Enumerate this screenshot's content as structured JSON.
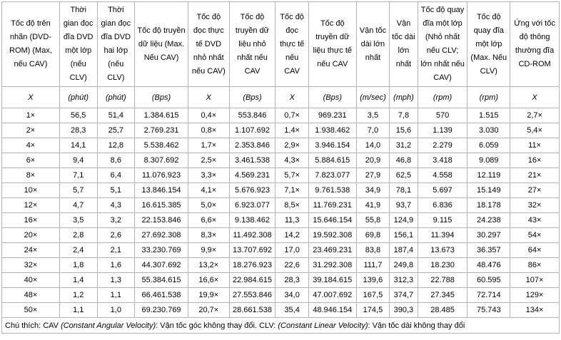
{
  "table": {
    "columns": [
      {
        "header": "Tốc độ trên nhãn (DVD-ROM) (Max, nếu CAV)",
        "unit": "X"
      },
      {
        "header": "Thời gian đọc đĩa DVD một lớp (nếu CLV)",
        "unit": "(phút)"
      },
      {
        "header": "Thời gian đọc đĩa DVD hai lớp (nếu CLV)",
        "unit": "(phút)"
      },
      {
        "header": "Tốc độ truyền dữ liệu (Max. Nếu CAV)",
        "unit": "(Bps)"
      },
      {
        "header": "Tốc độ đọc thực tế DVD nhỏ nhất nếu CAV)",
        "unit": "X"
      },
      {
        "header": "Tốc độ truyền dữ liệu nhỏ nhất nếu CAV",
        "unit": "(Bps)"
      },
      {
        "header": "Tốc độ đọc thực tế nếu CAV",
        "unit": "X"
      },
      {
        "header": "Tốc độ truyền dữ liệu thực tế nếu CAV",
        "unit": "(Bps)"
      },
      {
        "header": "Vận tốc dài lớn nhất",
        "unit": "(m/sec)"
      },
      {
        "header": "Vận tốc dài lớn nhất",
        "unit": "(mph)"
      },
      {
        "header": "Tốc độ quay đĩa một lớp (Nhỏ nhất nếu CLV; lớn nhất nếu CAV)",
        "unit": "(rpm)"
      },
      {
        "header": "Tốc độ quay đĩa một lớp (Max. Nếu CLV)",
        "unit": "(rpm)"
      },
      {
        "header": "Ứng với tốc độ thông thường đĩa CD-ROM",
        "unit": "X"
      }
    ],
    "rows": [
      [
        "1×",
        "56,5",
        "51,4",
        "1.384.615",
        "0,4×",
        "553.846",
        "0,7×",
        "969.231",
        "3,5",
        "7,8",
        "570",
        "1.515",
        "2,7×"
      ],
      [
        "2×",
        "28,3",
        "25,7",
        "2.769.231",
        "0,8×",
        "1.107.692",
        "1,4×",
        "1.938.462",
        "7,0",
        "15,6",
        "1.139",
        "3.030",
        "5,4×"
      ],
      [
        "4×",
        "14,1",
        "12,8",
        "5.538.462",
        "1,7×",
        "2.353.846",
        "2,9×",
        "3.946.154",
        "14,0",
        "31,2",
        "2.279",
        "6.059",
        "11×"
      ],
      [
        "6×",
        "9,4",
        "8,6",
        "8.307.692",
        "2,5×",
        "3.461.538",
        "4,3×",
        "5.884.615",
        "20,9",
        "46,8",
        "3.418",
        "9.089",
        "16×"
      ],
      [
        "8×",
        "7,1",
        "6,4",
        "11.076.923",
        "3,3×",
        "4.569.231",
        "5,7×",
        "7.823.077",
        "27,9",
        "62,5",
        "4.558",
        "12.119",
        "21×"
      ],
      [
        "10×",
        "5,7",
        "5,1",
        "13.846.154",
        "4,1×",
        "5.676.923",
        "7,1×",
        "9.761.538",
        "34,9",
        "78,1",
        "5.697",
        "15.149",
        "27×"
      ],
      [
        "12×",
        "4,7",
        "4,3",
        "16.615.385",
        "5,0×",
        "6.923.077",
        "8,5×",
        "11.769.231",
        "41,9",
        "93,7",
        "6.836",
        "18.178",
        "32×"
      ],
      [
        "16×",
        "3,5",
        "3,2",
        "22.153.846",
        "6,6×",
        "9.138.462",
        "11,3",
        "15.646.154",
        "55,8",
        "124,9",
        "9.115",
        "24.238",
        "43×"
      ],
      [
        "20×",
        "2,8",
        "2,6",
        "27.692.308",
        "8,3×",
        "11.492.308",
        "14,2",
        "19.592.308",
        "69,8",
        "156,1",
        "11.394",
        "30.297",
        "54×"
      ],
      [
        "24×",
        "2,4",
        "2,1",
        "33.230.769",
        "9,9×",
        "13.707.692",
        "17,0",
        "23.469.231",
        "83,8",
        "187,4",
        "13.673",
        "36.357",
        "64×"
      ],
      [
        "32×",
        "1,8",
        "1,6",
        "44.307.692",
        "13,2×",
        "18.276.923",
        "22,6",
        "31.292.308",
        "111,7",
        "249,8",
        "18.230",
        "48.476",
        "86×"
      ],
      [
        "40×",
        "1,4",
        "1,3",
        "55.384.615",
        "16,6×",
        "22.984.615",
        "28,3",
        "39.184.615",
        "139,6",
        "312,3",
        "22.788",
        "60.595",
        "107×"
      ],
      [
        "48×",
        "1,2",
        "1,1",
        "66.461.538",
        "19,9×",
        "27.553.846",
        "34,0",
        "47.007.692",
        "167,5",
        "374,7",
        "27.345",
        "72.714",
        "129×"
      ],
      [
        "50×",
        "1,1",
        "1,0",
        "69.230.769",
        "20,7×",
        "28.661.538",
        "35,4",
        "48.946.154",
        "174,5",
        "390,3",
        "28.485",
        "75.743",
        "134×"
      ]
    ]
  },
  "note": {
    "segments": [
      {
        "text": "Chú thích: CAV ",
        "italic": false
      },
      {
        "text": "(Constant Angular Velocity)",
        "italic": true
      },
      {
        "text": ": Vận tốc góc không thay đổi. CLV: ",
        "italic": false
      },
      {
        "text": "(Constant Linear Velocity)",
        "italic": true
      },
      {
        "text": ": Vận tốc dài không thay đổi",
        "italic": false
      }
    ]
  },
  "colors": {
    "border": "#b3b3b3",
    "text": "#000000",
    "background": "#ffffff"
  }
}
